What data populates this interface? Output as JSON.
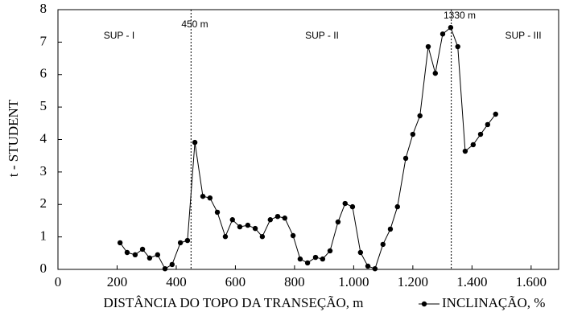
{
  "chart_data": {
    "type": "line",
    "x_label": "DISTÂNCIA DO TOPO DA TRANSEÇÃO, m",
    "y_label": "t - STUDENT",
    "series": [
      {
        "name": "INCLINAÇÃO, %",
        "color": "#000000",
        "x": [
          210,
          234,
          261,
          286,
          310,
          337,
          362,
          386,
          414,
          438,
          463,
          490,
          514,
          539,
          566,
          590,
          615,
          642,
          667,
          691,
          718,
          743,
          767,
          795,
          819,
          844,
          871,
          895,
          920,
          947,
          971,
          996,
          1023,
          1048,
          1072,
          1099,
          1124,
          1148,
          1176,
          1200,
          1224,
          1252,
          1276,
          1301,
          1328,
          1352,
          1377,
          1404,
          1429,
          1453,
          1480
        ],
        "values": [
          0.82,
          0.52,
          0.45,
          0.62,
          0.35,
          0.45,
          0.02,
          0.15,
          0.82,
          0.89,
          3.91,
          2.25,
          2.2,
          1.76,
          1.01,
          1.53,
          1.31,
          1.36,
          1.26,
          1.01,
          1.53,
          1.63,
          1.58,
          1.04,
          0.32,
          0.2,
          0.37,
          0.32,
          0.57,
          1.46,
          2.03,
          1.93,
          0.52,
          0.1,
          0.02,
          0.77,
          1.24,
          1.93,
          3.42,
          4.16,
          4.73,
          6.86,
          6.04,
          7.25,
          7.45,
          6.86,
          3.64,
          3.84,
          4.16,
          4.46,
          4.78
        ]
      }
    ],
    "xlim": [
      0,
      1693
    ],
    "ylim": [
      0,
      8
    ],
    "xticks": [
      0,
      200,
      400,
      600,
      800,
      {
        "value": 1000,
        "label": "1.000"
      },
      {
        "value": 1200,
        "label": "1.200"
      },
      {
        "value": 1400,
        "label": "1.400"
      },
      {
        "value": 1600,
        "label": "1.600"
      }
    ],
    "yticks": [
      0,
      1,
      2,
      3,
      4,
      5,
      6,
      7,
      8
    ],
    "vlines": [
      450,
      1330
    ],
    "annotations": [
      "SUP - I",
      "SUP - II",
      "SUP - III",
      "450 m",
      "1330 m"
    ]
  }
}
